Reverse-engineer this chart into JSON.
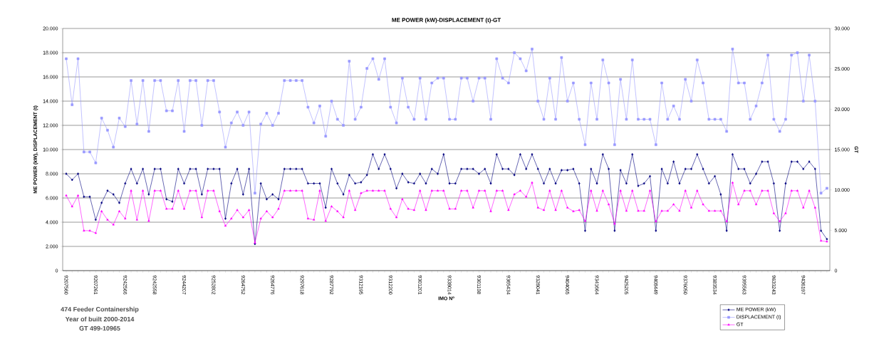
{
  "chart_data": {
    "type": "line",
    "title": "ME POWER (kW)-DISPLACEMENT (t)-GT",
    "xlabel": "IMO Nº",
    "ylabel": "ME POWER (kW), DISPLACEMENT (t)",
    "y2label": "GT",
    "categories": [
      "9207560",
      null,
      null,
      null,
      null,
      "9207261",
      null,
      null,
      null,
      null,
      "9242566",
      null,
      null,
      null,
      null,
      "9242558",
      null,
      null,
      null,
      null,
      "9244207",
      null,
      null,
      null,
      null,
      "9252802",
      null,
      null,
      null,
      null,
      "9264752",
      null,
      null,
      null,
      null,
      "9264776",
      null,
      null,
      null,
      null,
      "9297618",
      null,
      null,
      null,
      null,
      "9287792",
      null,
      null,
      null,
      null,
      "9312195",
      null,
      null,
      null,
      null,
      "9312200",
      null,
      null,
      null,
      null,
      "9301201",
      null,
      null,
      null,
      null,
      "9338014",
      null,
      null,
      null,
      null,
      "9301108",
      null,
      null,
      null,
      null,
      "9365434",
      null,
      null,
      null,
      null,
      "9328041",
      null,
      null,
      null,
      null,
      "9404065",
      null,
      null,
      null,
      null,
      "9341664",
      null,
      null,
      null,
      null,
      "9425205",
      null,
      null,
      null,
      null,
      "9408449",
      null,
      null,
      null,
      null,
      "9376050",
      null,
      null,
      null,
      null,
      "9383534",
      null,
      null,
      null,
      null,
      "9395563",
      null,
      null,
      null,
      null,
      "9633243",
      null,
      null,
      null,
      null,
      "9436197",
      null,
      null,
      null,
      null
    ],
    "series": [
      {
        "name": "ME POWER (kW)",
        "color": "#000080",
        "marker": "diamond",
        "values": [
          8000,
          7500,
          8000,
          6100,
          6100,
          4200,
          5600,
          6600,
          6300,
          5600,
          7200,
          8400,
          7200,
          8400,
          6300,
          8400,
          8400,
          5900,
          5700,
          8400,
          7200,
          8400,
          8400,
          6300,
          8400,
          8400,
          8400,
          4300,
          7200,
          8400,
          6300,
          8400,
          2200,
          7200,
          5900,
          6300,
          5900,
          8400,
          8400,
          8400,
          8400,
          7200,
          7200,
          7200,
          5200,
          8400,
          7200,
          6300,
          7900,
          7200,
          7300,
          7900,
          9600,
          8400,
          9600,
          8400,
          6800,
          8000,
          7300,
          7200,
          8000,
          7200,
          8400,
          8000,
          9600,
          7200,
          7200,
          8400,
          8400,
          8400,
          8000,
          8400,
          7200,
          9600,
          8400,
          8400,
          7900,
          9600,
          8400,
          9600,
          8400,
          7200,
          8400,
          7200,
          8300,
          8300,
          8400,
          7200,
          3300,
          8400,
          7200,
          9600,
          8400,
          3300,
          8300,
          7200,
          9600,
          7000,
          7200,
          7800,
          3300,
          8400,
          7200,
          9000,
          7200,
          8400,
          8400,
          9600,
          8400,
          7200,
          7800,
          6300,
          3300,
          9600,
          8400,
          8400,
          7200,
          8000,
          9000,
          9000,
          7200,
          3300,
          7200,
          9000,
          9000,
          8400,
          9000,
          8400,
          3300,
          2600
        ]
      },
      {
        "name": "DISPLACEMENT (t)",
        "color": "#9999ff",
        "marker": "square",
        "values": [
          17500,
          13700,
          17500,
          9800,
          9800,
          8900,
          12600,
          11600,
          10200,
          12600,
          11900,
          15700,
          12100,
          15700,
          11500,
          15700,
          15700,
          13200,
          13200,
          15700,
          11500,
          15700,
          15700,
          12000,
          15700,
          15700,
          13100,
          10200,
          12200,
          13100,
          12000,
          13100,
          6400,
          12100,
          13000,
          12000,
          13000,
          15700,
          15700,
          15700,
          15700,
          13500,
          12200,
          13600,
          11100,
          14000,
          12500,
          12000,
          17300,
          12500,
          13500,
          16700,
          17500,
          15800,
          17500,
          13500,
          12200,
          15900,
          13500,
          12500,
          15900,
          12500,
          15500,
          15900,
          15900,
          12500,
          12500,
          15900,
          15900,
          14000,
          15900,
          15900,
          12500,
          17500,
          15900,
          15500,
          18000,
          17500,
          16500,
          18300,
          14000,
          12500,
          15900,
          12500,
          17600,
          14000,
          15500,
          12500,
          10400,
          15500,
          12500,
          17400,
          15500,
          10400,
          15800,
          12500,
          17400,
          12500,
          12500,
          12500,
          10400,
          15500,
          12500,
          13600,
          12500,
          15800,
          14000,
          17400,
          15500,
          12500,
          12500,
          12500,
          11500,
          18300,
          15500,
          15500,
          12500,
          13600,
          15500,
          17800,
          12500,
          11500,
          12500,
          17800,
          18000,
          14000,
          17800,
          14000,
          6400,
          6800
        ]
      },
      {
        "name": "GT",
        "color": "#ff00ff",
        "marker": "triangle",
        "axis": "y2",
        "values": [
          9300,
          7950,
          9300,
          4950,
          4950,
          4650,
          7350,
          6300,
          5700,
          7350,
          6450,
          9900,
          6300,
          9900,
          6150,
          9900,
          9900,
          7650,
          7650,
          9900,
          7650,
          9900,
          9900,
          6600,
          9900,
          9900,
          7350,
          5550,
          6450,
          7500,
          6600,
          7500,
          3450,
          6450,
          7350,
          6600,
          7650,
          9900,
          9900,
          9900,
          9900,
          6450,
          6300,
          9900,
          6150,
          7950,
          7350,
          6600,
          9900,
          7500,
          9600,
          9900,
          9900,
          9900,
          9900,
          7650,
          6600,
          8850,
          7650,
          7500,
          9900,
          7500,
          9900,
          9900,
          9900,
          7650,
          7650,
          9900,
          9900,
          7800,
          9900,
          9900,
          7350,
          9900,
          9900,
          7500,
          9450,
          9900,
          9150,
          10900,
          7800,
          7500,
          9900,
          7500,
          9900,
          7800,
          7350,
          7500,
          6150,
          9900,
          7400,
          9900,
          8200,
          5800,
          9900,
          7400,
          9900,
          7400,
          7400,
          9900,
          6100,
          7400,
          7400,
          8200,
          7400,
          9900,
          7800,
          9900,
          8200,
          7400,
          7400,
          7400,
          6100,
          10900,
          8200,
          9900,
          9900,
          8200,
          9900,
          9900,
          7100,
          6100,
          7100,
          9900,
          9900,
          7800,
          9900,
          7800,
          3700,
          3600
        ]
      }
    ],
    "ylim": [
      0,
      20000
    ],
    "yticks": [
      {
        "value": 0,
        "label": "0"
      },
      {
        "value": 2000,
        "label": "2.000"
      },
      {
        "value": 4000,
        "label": "4.000"
      },
      {
        "value": 6000,
        "label": "6.000"
      },
      {
        "value": 8000,
        "label": "8.000"
      },
      {
        "value": 10000,
        "label": "10.000"
      },
      {
        "value": 12000,
        "label": "12.000"
      },
      {
        "value": 14000,
        "label": "14.000"
      },
      {
        "value": 16000,
        "label": "16.000"
      },
      {
        "value": 18000,
        "label": "18.000"
      },
      {
        "value": 20000,
        "label": "20.000"
      }
    ],
    "y2lim": [
      0,
      30000
    ],
    "y2ticks": [
      {
        "value": 0,
        "label": "0"
      },
      {
        "value": 5000,
        "label": "5.000"
      },
      {
        "value": 10000,
        "label": "10.000"
      },
      {
        "value": 15000,
        "label": "15.000"
      },
      {
        "value": 20000,
        "label": "20.000"
      },
      {
        "value": 25000,
        "label": "25.000"
      },
      {
        "value": 30000,
        "label": "30.000"
      }
    ],
    "grid": "y",
    "legend": "bottom right",
    "line_style": "solid",
    "annotations": [
      "474 Feeder Containership",
      "Year of built 2000-2014",
      "GT 499-10965"
    ]
  }
}
